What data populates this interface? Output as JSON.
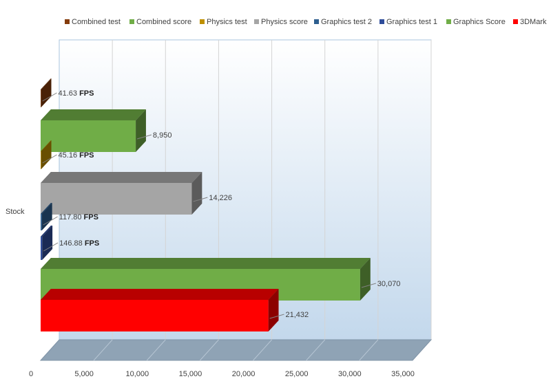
{
  "chart_data": {
    "type": "bar",
    "orientation": "horizontal",
    "style": "3d-clustered",
    "category": "Stock",
    "xlim": [
      0,
      35000
    ],
    "x_ticks": [
      0,
      5000,
      10000,
      15000,
      20000,
      25000,
      30000,
      35000
    ],
    "x_tick_labels": [
      "0",
      "5,000",
      "10,000",
      "15,000",
      "20,000",
      "25,000",
      "30,000",
      "35,000"
    ],
    "grid": true,
    "legend_position": "top",
    "series": [
      {
        "name": "Combined test",
        "value": 41.63,
        "value_label": "41.63",
        "unit": "FPS",
        "color": "#843c0c"
      },
      {
        "name": "Combined score",
        "value": 8950,
        "value_label": "8,950",
        "unit": "",
        "color": "#70ad47"
      },
      {
        "name": "Physics test",
        "value": 45.16,
        "value_label": "45.16",
        "unit": "FPS",
        "color": "#bf9000"
      },
      {
        "name": "Physics score",
        "value": 14226,
        "value_label": "14,226",
        "unit": "",
        "color": "#a5a5a5"
      },
      {
        "name": "Graphics test 2",
        "value": 117.8,
        "value_label": "117.80",
        "unit": "FPS",
        "color": "#2e5f8f"
      },
      {
        "name": "Graphics test 1",
        "value": 146.88,
        "value_label": "146.88",
        "unit": "FPS",
        "color": "#2f4d9a"
      },
      {
        "name": "Graphics Score",
        "value": 30070,
        "value_label": "30,070",
        "unit": "",
        "color": "#70ad47"
      },
      {
        "name": "3DMark",
        "value": 21432,
        "value_label": "21,432",
        "unit": "",
        "color": "#ff0000"
      }
    ],
    "legend_order": [
      "Combined test",
      "Combined score",
      "Physics test",
      "Physics score",
      "Graphics test 2",
      "Graphics test 1",
      "Graphics Score",
      "3DMark"
    ]
  }
}
